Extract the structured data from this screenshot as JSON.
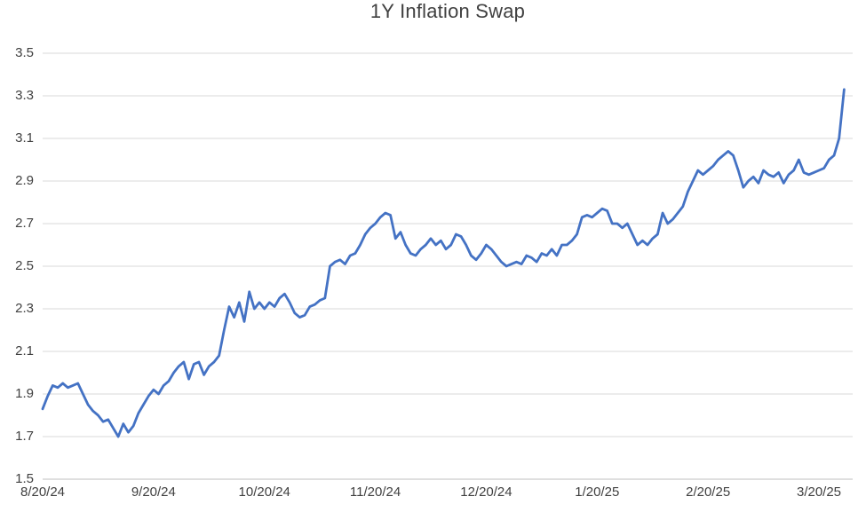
{
  "chart_data": {
    "type": "line",
    "title": "1Y Inflation Swap",
    "xlabel": "",
    "ylabel": "",
    "ylim": [
      1.5,
      3.5
    ],
    "grid": true,
    "legend": "none",
    "line_color": "#4472C4",
    "grid_color": "#D9D9D9",
    "axis_color": "#BFBFBF",
    "text_color": "#404040",
    "y_ticks": [
      1.5,
      1.7,
      1.9,
      2.1,
      2.3,
      2.5,
      2.7,
      2.9,
      3.1,
      3.3,
      3.5
    ],
    "x_tick_labels": [
      "8/20/24",
      "9/20/24",
      "10/20/24",
      "11/20/24",
      "12/20/24",
      "1/20/25",
      "2/20/25",
      "3/20/25"
    ],
    "x_tick_indices": [
      0,
      22,
      44,
      66,
      88,
      110,
      132,
      154
    ],
    "values": [
      1.83,
      1.89,
      1.94,
      1.93,
      1.95,
      1.93,
      1.94,
      1.95,
      1.9,
      1.85,
      1.82,
      1.8,
      1.77,
      1.78,
      1.74,
      1.7,
      1.76,
      1.72,
      1.75,
      1.81,
      1.85,
      1.89,
      1.92,
      1.9,
      1.94,
      1.96,
      2.0,
      2.03,
      2.05,
      1.97,
      2.04,
      2.05,
      1.99,
      2.03,
      2.05,
      2.08,
      2.2,
      2.31,
      2.26,
      2.33,
      2.24,
      2.38,
      2.3,
      2.33,
      2.3,
      2.33,
      2.31,
      2.35,
      2.37,
      2.33,
      2.28,
      2.26,
      2.27,
      2.31,
      2.32,
      2.34,
      2.35,
      2.5,
      2.52,
      2.53,
      2.51,
      2.55,
      2.56,
      2.6,
      2.65,
      2.68,
      2.7,
      2.73,
      2.75,
      2.74,
      2.63,
      2.66,
      2.6,
      2.56,
      2.55,
      2.58,
      2.6,
      2.63,
      2.6,
      2.62,
      2.58,
      2.6,
      2.65,
      2.64,
      2.6,
      2.55,
      2.53,
      2.56,
      2.6,
      2.58,
      2.55,
      2.52,
      2.5,
      2.51,
      2.52,
      2.51,
      2.55,
      2.54,
      2.52,
      2.56,
      2.55,
      2.58,
      2.55,
      2.6,
      2.6,
      2.62,
      2.65,
      2.73,
      2.74,
      2.73,
      2.75,
      2.77,
      2.76,
      2.7,
      2.7,
      2.68,
      2.7,
      2.65,
      2.6,
      2.62,
      2.6,
      2.63,
      2.65,
      2.75,
      2.7,
      2.72,
      2.75,
      2.78,
      2.85,
      2.9,
      2.95,
      2.93,
      2.95,
      2.97,
      3.0,
      3.02,
      3.04,
      3.02,
      2.95,
      2.87,
      2.9,
      2.92,
      2.89,
      2.95,
      2.93,
      2.92,
      2.94,
      2.89,
      2.93,
      2.95,
      3.0,
      2.94,
      2.93,
      2.94,
      2.95,
      2.96,
      3.0,
      3.02,
      3.1,
      3.33
    ]
  }
}
